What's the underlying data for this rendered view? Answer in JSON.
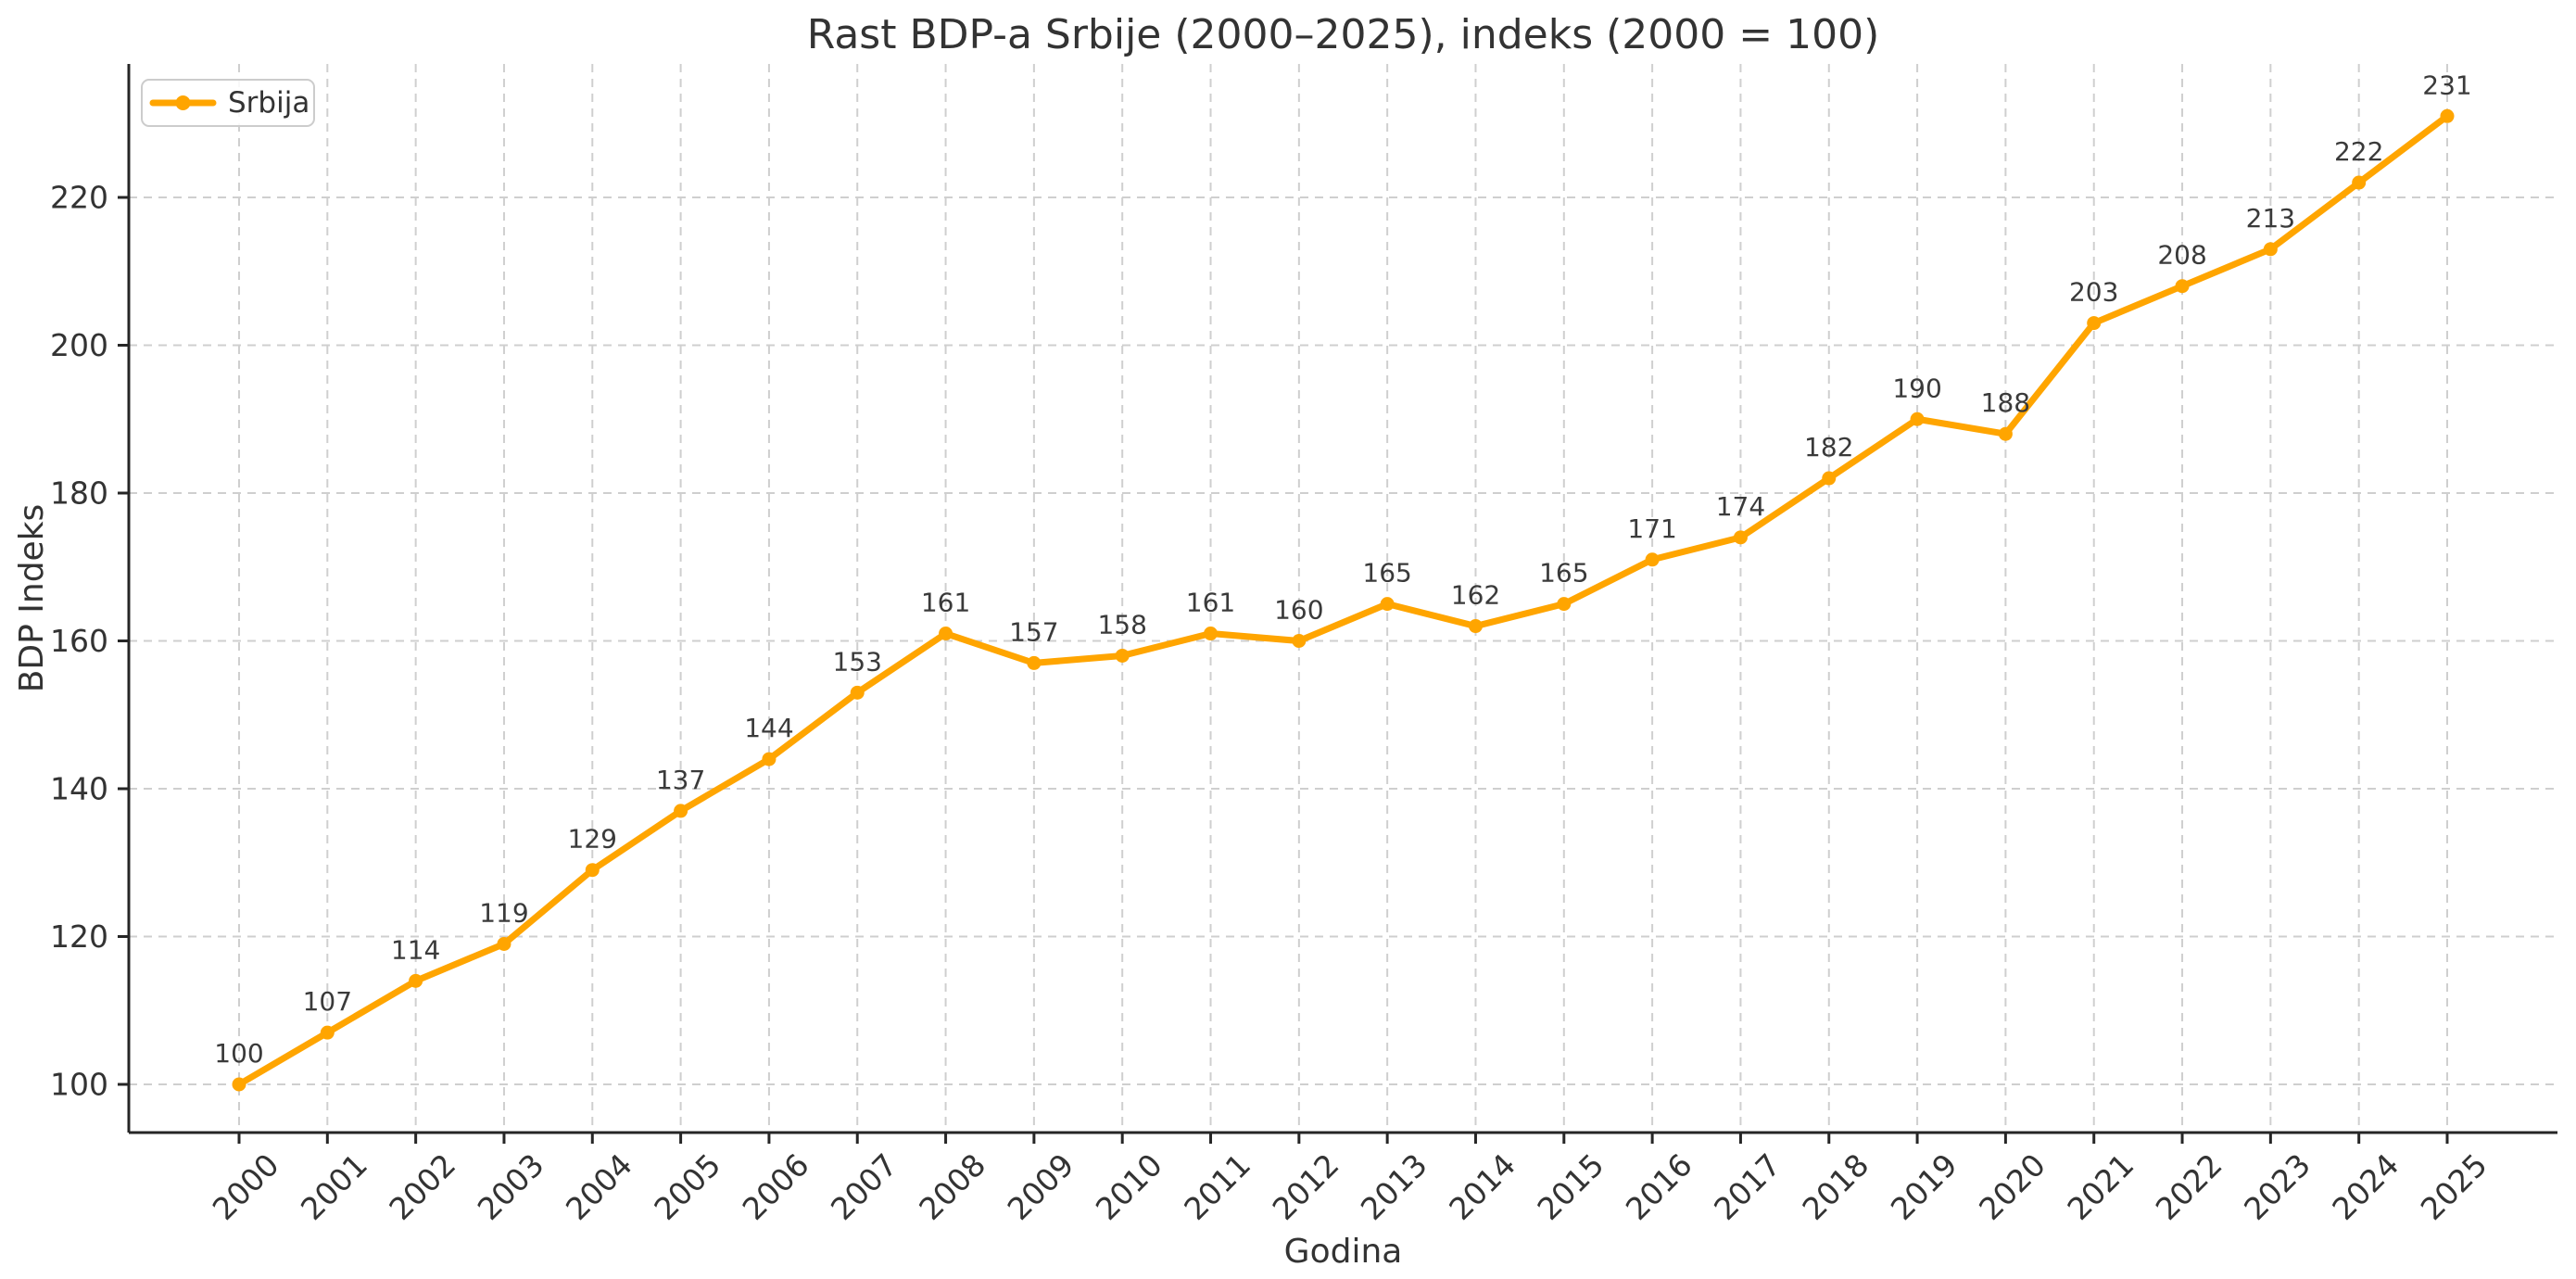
{
  "chart_data": {
    "type": "line",
    "title": "Rast BDP-a Srbije (2000–2025), indeks (2000 = 100)",
    "xlabel": "Godina",
    "ylabel": "BDP Indeks",
    "categories": [
      "2000",
      "2001",
      "2002",
      "2003",
      "2004",
      "2005",
      "2006",
      "2007",
      "2008",
      "2009",
      "2010",
      "2011",
      "2012",
      "2013",
      "2014",
      "2015",
      "2016",
      "2017",
      "2018",
      "2019",
      "2020",
      "2021",
      "2022",
      "2023",
      "2024",
      "2025"
    ],
    "series": [
      {
        "name": "Srbija",
        "values": [
          100,
          107,
          114,
          119,
          129,
          137,
          144,
          153,
          161,
          157,
          158,
          161,
          160,
          165,
          162,
          165,
          171,
          174,
          182,
          190,
          188,
          203,
          208,
          213,
          222,
          231
        ],
        "color": "#FFA500"
      }
    ],
    "data_labels": [
      100,
      107,
      114,
      119,
      129,
      137,
      144,
      153,
      161,
      157,
      158,
      161,
      160,
      165,
      162,
      165,
      171,
      174,
      182,
      190,
      188,
      203,
      208,
      213,
      222,
      231
    ],
    "yticks": [
      100,
      120,
      140,
      160,
      180,
      200,
      220
    ],
    "ylim": [
      93.5,
      237.5
    ],
    "xlim_padding_years": 1.25,
    "grid": true,
    "grid_style": "dashed",
    "legend": {
      "label": "Srbija",
      "position": "upper left",
      "marker": "circle-line"
    },
    "marker": "circle"
  },
  "colors": {
    "line": "#FFA500",
    "grid": "#cfcfcf",
    "spine": "#262626",
    "text": "#333333",
    "point_label": "#3a3a3a",
    "legend_border": "#cccccc",
    "background": "#ffffff"
  }
}
